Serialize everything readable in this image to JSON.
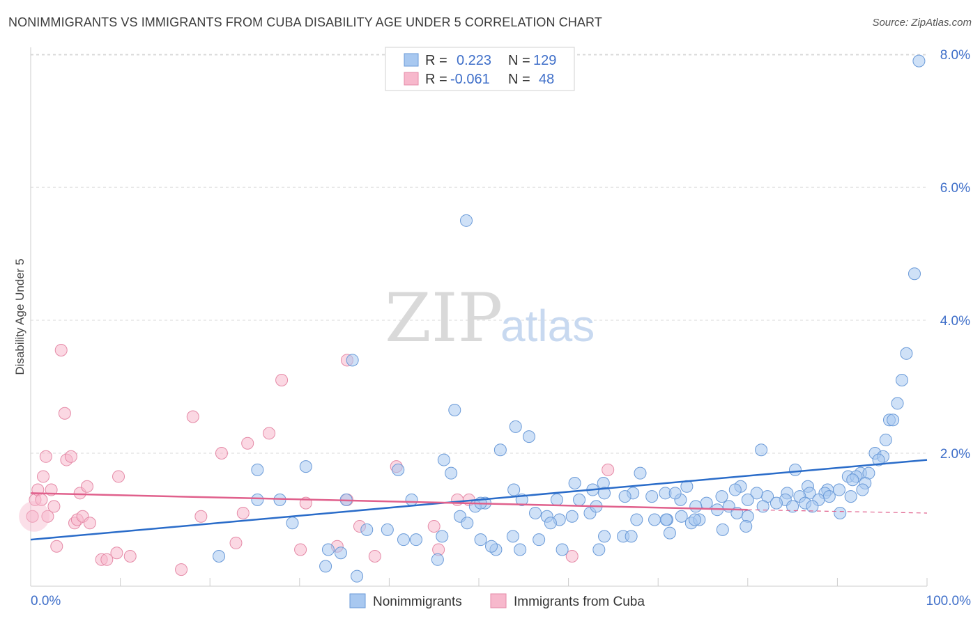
{
  "title": "NONIMMIGRANTS VS IMMIGRANTS FROM CUBA DISABILITY AGE UNDER 5 CORRELATION CHART",
  "source": "Source: ZipAtlas.com",
  "watermark": {
    "zip": "ZIP",
    "atlas": "atlas"
  },
  "legend_top": {
    "rows": [
      {
        "r_label": "R =",
        "r_value": "0.223",
        "n_label": "N =",
        "n_value": "129",
        "color": "#a8c8f0"
      },
      {
        "r_label": "R =",
        "r_value": "-0.061",
        "n_label": "N =",
        "n_value": "48",
        "color": "#f7b8cc"
      }
    ]
  },
  "legend_bottom": [
    {
      "label": "Nonimmigrants",
      "color": "#a8c8f0"
    },
    {
      "label": "Immigrants from Cuba",
      "color": "#f7b8cc"
    }
  ],
  "chart_data": {
    "type": "scatter",
    "ylabel": "Disability Age Under 5",
    "xlim": [
      0,
      100
    ],
    "ylim": [
      0,
      8.2
    ],
    "x_tick_labels": [
      "0.0%",
      "100.0%"
    ],
    "y_ticks": [
      {
        "value": 2,
        "label": "2.0%"
      },
      {
        "value": 4,
        "label": "4.0%"
      },
      {
        "value": 6,
        "label": "6.0%"
      },
      {
        "value": 8,
        "label": "8.0%"
      }
    ],
    "grid": "horizontal dashed",
    "colors": {
      "blue_fill": "#a8c8f0",
      "blue_stroke": "#6a9ad8",
      "blue_line": "#2a6cc9",
      "pink_fill": "#f7b8cc",
      "pink_stroke": "#e58aa7",
      "pink_line": "#e0608c"
    },
    "series": [
      {
        "name": "Nonimmigrants",
        "color": "#a8c8f0",
        "trend": {
          "x0": 0,
          "y0": 0.7,
          "x1": 100,
          "y1": 1.9
        },
        "points": [
          [
            99.1,
            7.9
          ],
          [
            48.6,
            5.5
          ],
          [
            98.6,
            4.7
          ],
          [
            97.7,
            3.5
          ],
          [
            97.2,
            3.1
          ],
          [
            96.7,
            2.75
          ],
          [
            95.8,
            2.5
          ],
          [
            96.2,
            2.5
          ],
          [
            95.4,
            2.2
          ],
          [
            35.9,
            3.4
          ],
          [
            47.3,
            2.65
          ],
          [
            54.1,
            2.4
          ],
          [
            55.6,
            2.25
          ],
          [
            52.4,
            2.05
          ],
          [
            46.1,
            1.9
          ],
          [
            81.5,
            2.05
          ],
          [
            94.2,
            2.0
          ],
          [
            95.1,
            1.95
          ],
          [
            94.6,
            1.9
          ],
          [
            25.3,
            1.75
          ],
          [
            30.7,
            1.8
          ],
          [
            41.0,
            1.75
          ],
          [
            46.9,
            1.7
          ],
          [
            85.3,
            1.75
          ],
          [
            92.6,
            1.7
          ],
          [
            93.5,
            1.7
          ],
          [
            91.2,
            1.65
          ],
          [
            92.1,
            1.65
          ],
          [
            91.7,
            1.6
          ],
          [
            93.1,
            1.55
          ],
          [
            53.9,
            1.45
          ],
          [
            60.7,
            1.55
          ],
          [
            63.9,
            1.55
          ],
          [
            68.0,
            1.7
          ],
          [
            73.2,
            1.5
          ],
          [
            79.2,
            1.5
          ],
          [
            86.7,
            1.5
          ],
          [
            88.9,
            1.45
          ],
          [
            90.2,
            1.45
          ],
          [
            62.7,
            1.45
          ],
          [
            67.2,
            1.4
          ],
          [
            70.8,
            1.4
          ],
          [
            78.6,
            1.45
          ],
          [
            84.4,
            1.4
          ],
          [
            86.9,
            1.4
          ],
          [
            88.6,
            1.4
          ],
          [
            92.8,
            1.45
          ],
          [
            91.5,
            1.35
          ],
          [
            89.1,
            1.35
          ],
          [
            87.9,
            1.3
          ],
          [
            85.8,
            1.35
          ],
          [
            84.2,
            1.3
          ],
          [
            82.2,
            1.35
          ],
          [
            81.0,
            1.4
          ],
          [
            80.0,
            1.3
          ],
          [
            77.1,
            1.35
          ],
          [
            75.4,
            1.25
          ],
          [
            74.2,
            1.2
          ],
          [
            72.5,
            1.3
          ],
          [
            71.9,
            1.4
          ],
          [
            69.3,
            1.35
          ],
          [
            66.3,
            1.35
          ],
          [
            64.0,
            1.4
          ],
          [
            61.2,
            1.3
          ],
          [
            58.7,
            1.3
          ],
          [
            54.8,
            1.3
          ],
          [
            50.7,
            1.25
          ],
          [
            49.6,
            1.2
          ],
          [
            50.2,
            1.25
          ],
          [
            56.3,
            1.1
          ],
          [
            57.6,
            1.05
          ],
          [
            59.0,
            1.0
          ],
          [
            60.4,
            1.05
          ],
          [
            62.4,
            1.1
          ],
          [
            67.6,
            1.0
          ],
          [
            69.6,
            1.0
          ],
          [
            71.0,
            1.0
          ],
          [
            72.6,
            1.05
          ],
          [
            73.7,
            0.95
          ],
          [
            74.6,
            1.0
          ],
          [
            76.6,
            1.15
          ],
          [
            77.9,
            1.2
          ],
          [
            78.8,
            1.1
          ],
          [
            80.0,
            1.05
          ],
          [
            81.7,
            1.2
          ],
          [
            83.2,
            1.25
          ],
          [
            85.0,
            1.2
          ],
          [
            86.4,
            1.25
          ],
          [
            87.2,
            1.2
          ],
          [
            90.3,
            1.1
          ],
          [
            25.3,
            1.3
          ],
          [
            27.8,
            1.3
          ],
          [
            35.2,
            1.3
          ],
          [
            42.5,
            1.3
          ],
          [
            47.9,
            1.05
          ],
          [
            48.7,
            0.95
          ],
          [
            58.0,
            0.95
          ],
          [
            63.1,
            1.2
          ],
          [
            74.1,
            1.0
          ],
          [
            77.2,
            0.85
          ],
          [
            79.8,
            0.9
          ],
          [
            37.5,
            0.85
          ],
          [
            29.2,
            0.95
          ],
          [
            33.2,
            0.55
          ],
          [
            34.6,
            0.5
          ],
          [
            39.8,
            0.85
          ],
          [
            41.6,
            0.7
          ],
          [
            43.0,
            0.7
          ],
          [
            45.9,
            0.75
          ],
          [
            50.2,
            0.7
          ],
          [
            51.9,
            0.55
          ],
          [
            53.8,
            0.75
          ],
          [
            56.7,
            0.7
          ],
          [
            59.3,
            0.55
          ],
          [
            64.0,
            0.75
          ],
          [
            66.1,
            0.75
          ],
          [
            67.0,
            0.75
          ],
          [
            71.3,
            0.8
          ],
          [
            21.0,
            0.45
          ],
          [
            36.4,
            0.15
          ],
          [
            45.4,
            0.4
          ],
          [
            51.4,
            0.6
          ],
          [
            54.6,
            0.55
          ],
          [
            63.4,
            0.55
          ],
          [
            32.9,
            0.3
          ],
          [
            70.9,
            1.0
          ]
        ]
      },
      {
        "name": "Immigrants from Cuba",
        "color": "#f7b8cc",
        "trend": {
          "x0": 0,
          "y0": 1.4,
          "x1": 80,
          "y1": 1.15,
          "x_dash_end": 100,
          "y_dash_end": 1.1
        },
        "points": [
          [
            0.2,
            1.05
          ],
          [
            0.5,
            1.3
          ],
          [
            0.8,
            1.45
          ],
          [
            1.2,
            1.3
          ],
          [
            1.4,
            1.65
          ],
          [
            1.7,
            1.95
          ],
          [
            1.9,
            1.05
          ],
          [
            2.3,
            1.45
          ],
          [
            2.6,
            1.2
          ],
          [
            2.9,
            0.6
          ],
          [
            3.4,
            3.55
          ],
          [
            3.8,
            2.6
          ],
          [
            4.0,
            1.9
          ],
          [
            4.5,
            1.95
          ],
          [
            4.9,
            0.95
          ],
          [
            5.2,
            1.0
          ],
          [
            5.5,
            1.4
          ],
          [
            5.8,
            1.05
          ],
          [
            6.3,
            1.5
          ],
          [
            6.6,
            0.95
          ],
          [
            7.9,
            0.4
          ],
          [
            8.5,
            0.4
          ],
          [
            9.6,
            0.5
          ],
          [
            11.1,
            0.45
          ],
          [
            9.8,
            1.65
          ],
          [
            16.8,
            0.25
          ],
          [
            18.1,
            2.55
          ],
          [
            19.0,
            1.05
          ],
          [
            21.3,
            2.0
          ],
          [
            22.9,
            0.65
          ],
          [
            23.7,
            1.1
          ],
          [
            24.2,
            2.15
          ],
          [
            26.6,
            2.3
          ],
          [
            28.0,
            3.1
          ],
          [
            30.1,
            0.55
          ],
          [
            30.7,
            1.25
          ],
          [
            34.2,
            0.6
          ],
          [
            35.3,
            3.4
          ],
          [
            35.3,
            1.3
          ],
          [
            36.7,
            0.9
          ],
          [
            38.4,
            0.45
          ],
          [
            40.8,
            1.8
          ],
          [
            45.0,
            0.9
          ],
          [
            45.5,
            0.55
          ],
          [
            47.6,
            1.3
          ],
          [
            48.9,
            1.3
          ],
          [
            64.4,
            1.75
          ],
          [
            60.4,
            0.45
          ]
        ]
      }
    ]
  }
}
